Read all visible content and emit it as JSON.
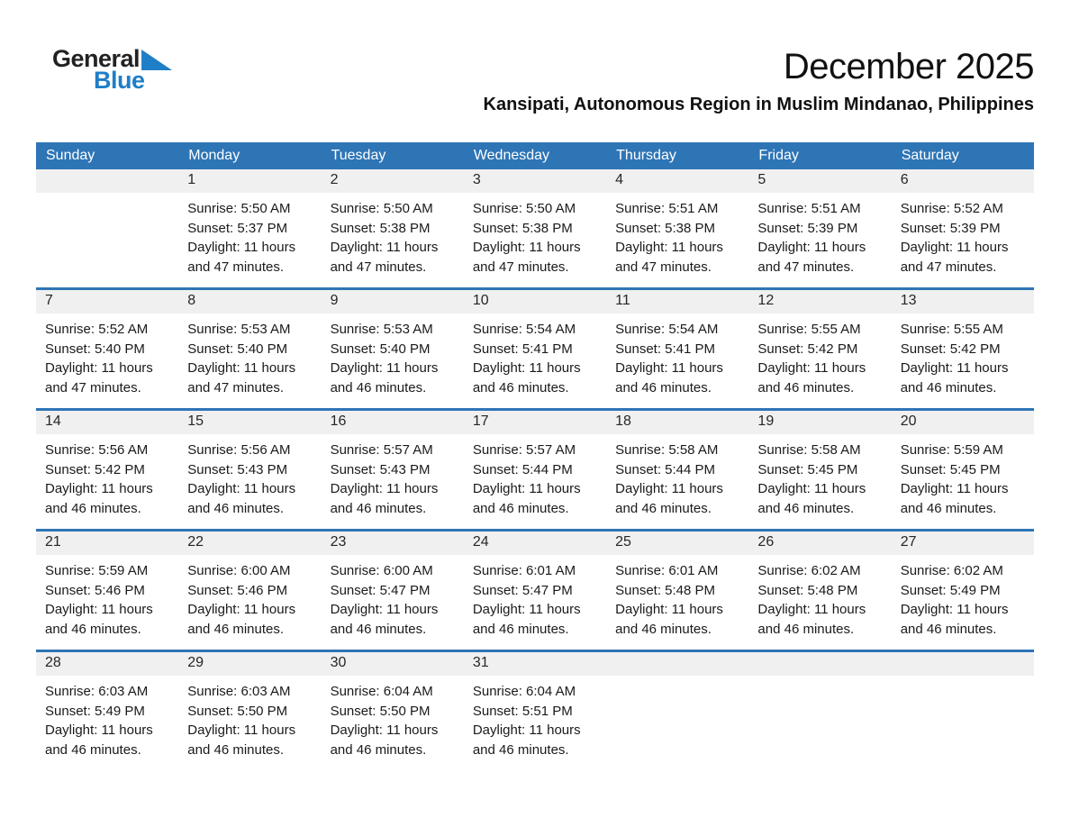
{
  "logo": {
    "line1": "General",
    "line2": "Blue"
  },
  "title": "December 2025",
  "subtitle": "Kansipati, Autonomous Region in Muslim Mindanao, Philippines",
  "colors": {
    "header_bg": "#2E75B6",
    "separator": "#2E75B6",
    "band_bg": "#F0F0F0",
    "logo_blue": "#1F7EC8",
    "text": "#1A1A1A"
  },
  "weekdays": [
    "Sunday",
    "Monday",
    "Tuesday",
    "Wednesday",
    "Thursday",
    "Friday",
    "Saturday"
  ],
  "weeks": [
    [
      null,
      {
        "day": "1",
        "sunrise": "Sunrise: 5:50 AM",
        "sunset": "Sunset: 5:37 PM",
        "daylight": [
          "Daylight: 11 hours",
          "and 47 minutes."
        ]
      },
      {
        "day": "2",
        "sunrise": "Sunrise: 5:50 AM",
        "sunset": "Sunset: 5:38 PM",
        "daylight": [
          "Daylight: 11 hours",
          "and 47 minutes."
        ]
      },
      {
        "day": "3",
        "sunrise": "Sunrise: 5:50 AM",
        "sunset": "Sunset: 5:38 PM",
        "daylight": [
          "Daylight: 11 hours",
          "and 47 minutes."
        ]
      },
      {
        "day": "4",
        "sunrise": "Sunrise: 5:51 AM",
        "sunset": "Sunset: 5:38 PM",
        "daylight": [
          "Daylight: 11 hours",
          "and 47 minutes."
        ]
      },
      {
        "day": "5",
        "sunrise": "Sunrise: 5:51 AM",
        "sunset": "Sunset: 5:39 PM",
        "daylight": [
          "Daylight: 11 hours",
          "and 47 minutes."
        ]
      },
      {
        "day": "6",
        "sunrise": "Sunrise: 5:52 AM",
        "sunset": "Sunset: 5:39 PM",
        "daylight": [
          "Daylight: 11 hours",
          "and 47 minutes."
        ]
      }
    ],
    [
      {
        "day": "7",
        "sunrise": "Sunrise: 5:52 AM",
        "sunset": "Sunset: 5:40 PM",
        "daylight": [
          "Daylight: 11 hours",
          "and 47 minutes."
        ]
      },
      {
        "day": "8",
        "sunrise": "Sunrise: 5:53 AM",
        "sunset": "Sunset: 5:40 PM",
        "daylight": [
          "Daylight: 11 hours",
          "and 47 minutes."
        ]
      },
      {
        "day": "9",
        "sunrise": "Sunrise: 5:53 AM",
        "sunset": "Sunset: 5:40 PM",
        "daylight": [
          "Daylight: 11 hours",
          "and 46 minutes."
        ]
      },
      {
        "day": "10",
        "sunrise": "Sunrise: 5:54 AM",
        "sunset": "Sunset: 5:41 PM",
        "daylight": [
          "Daylight: 11 hours",
          "and 46 minutes."
        ]
      },
      {
        "day": "11",
        "sunrise": "Sunrise: 5:54 AM",
        "sunset": "Sunset: 5:41 PM",
        "daylight": [
          "Daylight: 11 hours",
          "and 46 minutes."
        ]
      },
      {
        "day": "12",
        "sunrise": "Sunrise: 5:55 AM",
        "sunset": "Sunset: 5:42 PM",
        "daylight": [
          "Daylight: 11 hours",
          "and 46 minutes."
        ]
      },
      {
        "day": "13",
        "sunrise": "Sunrise: 5:55 AM",
        "sunset": "Sunset: 5:42 PM",
        "daylight": [
          "Daylight: 11 hours",
          "and 46 minutes."
        ]
      }
    ],
    [
      {
        "day": "14",
        "sunrise": "Sunrise: 5:56 AM",
        "sunset": "Sunset: 5:42 PM",
        "daylight": [
          "Daylight: 11 hours",
          "and 46 minutes."
        ]
      },
      {
        "day": "15",
        "sunrise": "Sunrise: 5:56 AM",
        "sunset": "Sunset: 5:43 PM",
        "daylight": [
          "Daylight: 11 hours",
          "and 46 minutes."
        ]
      },
      {
        "day": "16",
        "sunrise": "Sunrise: 5:57 AM",
        "sunset": "Sunset: 5:43 PM",
        "daylight": [
          "Daylight: 11 hours",
          "and 46 minutes."
        ]
      },
      {
        "day": "17",
        "sunrise": "Sunrise: 5:57 AM",
        "sunset": "Sunset: 5:44 PM",
        "daylight": [
          "Daylight: 11 hours",
          "and 46 minutes."
        ]
      },
      {
        "day": "18",
        "sunrise": "Sunrise: 5:58 AM",
        "sunset": "Sunset: 5:44 PM",
        "daylight": [
          "Daylight: 11 hours",
          "and 46 minutes."
        ]
      },
      {
        "day": "19",
        "sunrise": "Sunrise: 5:58 AM",
        "sunset": "Sunset: 5:45 PM",
        "daylight": [
          "Daylight: 11 hours",
          "and 46 minutes."
        ]
      },
      {
        "day": "20",
        "sunrise": "Sunrise: 5:59 AM",
        "sunset": "Sunset: 5:45 PM",
        "daylight": [
          "Daylight: 11 hours",
          "and 46 minutes."
        ]
      }
    ],
    [
      {
        "day": "21",
        "sunrise": "Sunrise: 5:59 AM",
        "sunset": "Sunset: 5:46 PM",
        "daylight": [
          "Daylight: 11 hours",
          "and 46 minutes."
        ]
      },
      {
        "day": "22",
        "sunrise": "Sunrise: 6:00 AM",
        "sunset": "Sunset: 5:46 PM",
        "daylight": [
          "Daylight: 11 hours",
          "and 46 minutes."
        ]
      },
      {
        "day": "23",
        "sunrise": "Sunrise: 6:00 AM",
        "sunset": "Sunset: 5:47 PM",
        "daylight": [
          "Daylight: 11 hours",
          "and 46 minutes."
        ]
      },
      {
        "day": "24",
        "sunrise": "Sunrise: 6:01 AM",
        "sunset": "Sunset: 5:47 PM",
        "daylight": [
          "Daylight: 11 hours",
          "and 46 minutes."
        ]
      },
      {
        "day": "25",
        "sunrise": "Sunrise: 6:01 AM",
        "sunset": "Sunset: 5:48 PM",
        "daylight": [
          "Daylight: 11 hours",
          "and 46 minutes."
        ]
      },
      {
        "day": "26",
        "sunrise": "Sunrise: 6:02 AM",
        "sunset": "Sunset: 5:48 PM",
        "daylight": [
          "Daylight: 11 hours",
          "and 46 minutes."
        ]
      },
      {
        "day": "27",
        "sunrise": "Sunrise: 6:02 AM",
        "sunset": "Sunset: 5:49 PM",
        "daylight": [
          "Daylight: 11 hours",
          "and 46 minutes."
        ]
      }
    ],
    [
      {
        "day": "28",
        "sunrise": "Sunrise: 6:03 AM",
        "sunset": "Sunset: 5:49 PM",
        "daylight": [
          "Daylight: 11 hours",
          "and 46 minutes."
        ]
      },
      {
        "day": "29",
        "sunrise": "Sunrise: 6:03 AM",
        "sunset": "Sunset: 5:50 PM",
        "daylight": [
          "Daylight: 11 hours",
          "and 46 minutes."
        ]
      },
      {
        "day": "30",
        "sunrise": "Sunrise: 6:04 AM",
        "sunset": "Sunset: 5:50 PM",
        "daylight": [
          "Daylight: 11 hours",
          "and 46 minutes."
        ]
      },
      {
        "day": "31",
        "sunrise": "Sunrise: 6:04 AM",
        "sunset": "Sunset: 5:51 PM",
        "daylight": [
          "Daylight: 11 hours",
          "and 46 minutes."
        ]
      },
      null,
      null,
      null
    ]
  ]
}
